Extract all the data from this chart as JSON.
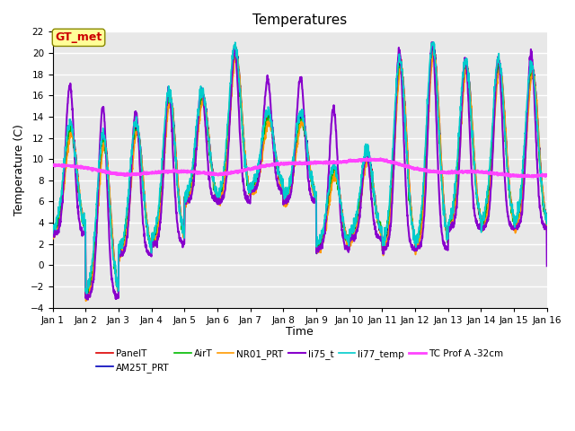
{
  "title": "Temperatures",
  "xlabel": "Time",
  "ylabel": "Temperature (C)",
  "ylim": [
    -4,
    22
  ],
  "yticks": [
    -4,
    -2,
    0,
    2,
    4,
    6,
    8,
    10,
    12,
    14,
    16,
    18,
    20,
    22
  ],
  "xtick_labels": [
    "Jan 1",
    "Jan 2",
    "Jan 3",
    "Jan 4",
    "Jan 5",
    "Jan 6",
    "Jan 7",
    "Jan 8",
    "Jan 9",
    "Jan 10",
    "Jan 11",
    "Jan 12",
    "Jan 13",
    "Jan 14",
    "Jan 15",
    "Jan 16"
  ],
  "series_order": [
    "PanelT",
    "AM25T_PRT",
    "AirT",
    "NR01_PRT",
    "li75_t",
    "li77_temp",
    "TC Prof A -32cm"
  ],
  "series_colors": {
    "PanelT": "#dd0000",
    "AM25T_PRT": "#0000bb",
    "AirT": "#00bb00",
    "NR01_PRT": "#ff9900",
    "li75_t": "#8800cc",
    "li77_temp": "#00cccc",
    "TC Prof A -32cm": "#ff44ff"
  },
  "series_lw": {
    "PanelT": 1.2,
    "AM25T_PRT": 1.2,
    "AirT": 1.2,
    "NR01_PRT": 1.2,
    "li75_t": 1.5,
    "li77_temp": 1.2,
    "TC Prof A -32cm": 2.0
  },
  "gt_met_label": {
    "text": "GT_met",
    "color": "#cc0000",
    "bg": "#ffff99",
    "fontsize": 9,
    "fontweight": "bold",
    "border_color": "#888800"
  },
  "plot_bg": "#e8e8e8",
  "grid_color": "#ffffff",
  "title_fontsize": 11,
  "axis_fontsize": 9,
  "tick_fontsize": 7.5
}
